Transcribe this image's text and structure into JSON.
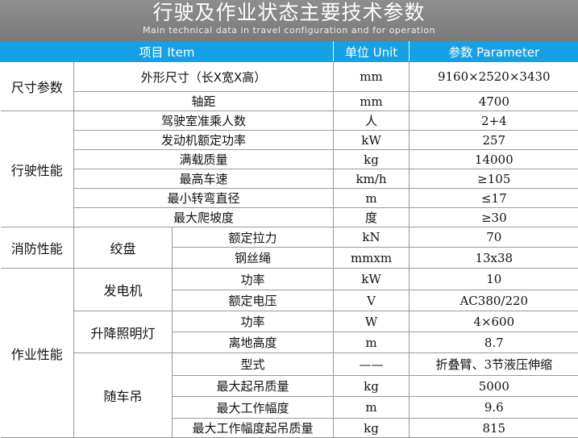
{
  "title": "行驶及作业状态主要技术参数",
  "subtitle": "Main technical data in travel configuration and for operation",
  "colors": {
    "header_bg": "#16a0e5",
    "banner_bg": "#858585"
  },
  "headers": {
    "item": "项目 Item",
    "unit": "单位 Unit",
    "param": "参数 Parameter"
  },
  "groups": {
    "dim": "尺寸参数",
    "drive": "行驶性能",
    "fire": "消防性能",
    "work": "作业性能",
    "winch": "绞盘",
    "gen": "发电机",
    "light": "升降照明灯",
    "crane": "随车吊"
  },
  "rows": [
    {
      "item": "外形尺寸（长X宽X高）",
      "unit": "mm",
      "value": "9160×2520×3430"
    },
    {
      "item": "轴距",
      "unit": "mm",
      "value": "4700"
    },
    {
      "item": "驾驶室准乘人数",
      "unit": "人",
      "value": "2+4"
    },
    {
      "item": "发动机额定功率",
      "unit": "kW",
      "value": "257"
    },
    {
      "item": "满载质量",
      "unit": "kg",
      "value": "14000"
    },
    {
      "item": "最高车速",
      "unit": "km/h",
      "value": "≥105"
    },
    {
      "item": "最小转弯直径",
      "unit": "m",
      "value": "≤17"
    },
    {
      "item": "最大爬坡度",
      "unit": "度",
      "value": "≥30"
    },
    {
      "item": "额定拉力",
      "unit": "kN",
      "value": "70"
    },
    {
      "item": "钢丝绳",
      "unit": "mmxm",
      "value": "13x38"
    },
    {
      "item": "功率",
      "unit": "kW",
      "value": "10"
    },
    {
      "item": "额定电压",
      "unit": "V",
      "value": "AC380/220"
    },
    {
      "item": "功率",
      "unit": "W",
      "value": "4×600"
    },
    {
      "item": "离地高度",
      "unit": "m",
      "value": "8.7"
    },
    {
      "item": "型式",
      "unit": "——",
      "value": "折叠臂、3节液压伸缩"
    },
    {
      "item": "最大起吊质量",
      "unit": "kg",
      "value": "5000"
    },
    {
      "item": "最大工作幅度",
      "unit": "m",
      "value": "9.6"
    },
    {
      "item": "最大工作幅度起吊质量",
      "unit": "kg",
      "value": "815"
    }
  ]
}
